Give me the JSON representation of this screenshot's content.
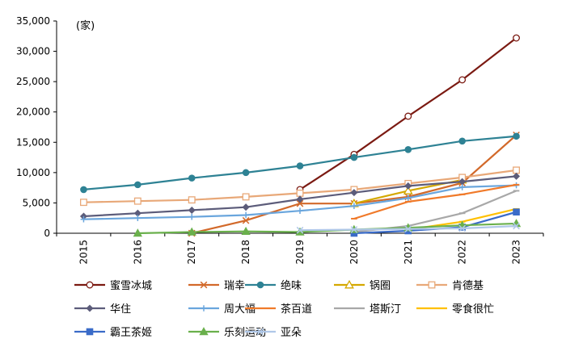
{
  "chart_data": {
    "type": "line",
    "unit_label": "(家)",
    "categories": [
      "2015",
      "2016",
      "2017",
      "2018",
      "2019",
      "2020",
      "2021",
      "2022",
      "2023"
    ],
    "ylim": [
      0,
      35000
    ],
    "yticks": [
      "0",
      "5,000",
      "10,000",
      "15,000",
      "20,000",
      "25,000",
      "30,000",
      "35,000"
    ],
    "ytick_values": [
      0,
      5000,
      10000,
      15000,
      20000,
      25000,
      30000,
      35000
    ],
    "series": [
      {
        "name": "蜜雪冰城",
        "color": "#7b1a12",
        "marker": "circle-open",
        "values": [
          null,
          null,
          null,
          null,
          7200,
          13000,
          19300,
          25300,
          32200
        ]
      },
      {
        "name": "瑞幸",
        "color": "#d2692a",
        "marker": "x",
        "values": [
          null,
          null,
          0,
          2100,
          4900,
          4900,
          6000,
          8300,
          16200
        ]
      },
      {
        "name": "绝味",
        "color": "#2e8294",
        "marker": "circle",
        "values": [
          7200,
          8000,
          9100,
          10000,
          11100,
          12500,
          13800,
          15200,
          16000
        ]
      },
      {
        "name": "锅圈",
        "color": "#d4a800",
        "marker": "triangle-open",
        "values": [
          null,
          null,
          null,
          null,
          null,
          4900,
          7000,
          8800,
          null
        ]
      },
      {
        "name": "肯德基",
        "color": "#e8a878",
        "marker": "square-open",
        "values": [
          5100,
          5300,
          5500,
          6000,
          6600,
          7200,
          8200,
          9200,
          10400
        ]
      },
      {
        "name": "华住",
        "color": "#5c5c7a",
        "marker": "diamond",
        "values": [
          2800,
          3300,
          3800,
          4300,
          5600,
          6700,
          7800,
          8500,
          9400
        ]
      },
      {
        "name": "周大福",
        "color": "#6aa6dd",
        "marker": "plus",
        "values": [
          2300,
          2500,
          2700,
          3000,
          3700,
          4500,
          5800,
          7600,
          7900
        ]
      },
      {
        "name": "茶百道",
        "color": "#f07a2a",
        "marker": "dash",
        "values": [
          null,
          null,
          null,
          null,
          null,
          2400,
          5200,
          6400,
          8000
        ]
      },
      {
        "name": "塔斯汀",
        "color": "#a8a8a8",
        "marker": "dash",
        "values": [
          null,
          null,
          null,
          null,
          null,
          200,
          1200,
          3300,
          7000
        ]
      },
      {
        "name": "零食很忙",
        "color": "#ffc000",
        "marker": "dash",
        "values": [
          null,
          null,
          null,
          null,
          null,
          null,
          600,
          1900,
          4000
        ]
      },
      {
        "name": "霸王茶姬",
        "color": "#3a6bc8",
        "marker": "square",
        "values": [
          null,
          null,
          null,
          null,
          null,
          0,
          400,
          1000,
          3500
        ]
      },
      {
        "name": "乐刻运动",
        "color": "#6ab04c",
        "marker": "triangle",
        "values": [
          null,
          0,
          200,
          300,
          200,
          600,
          900,
          1300,
          1600
        ]
      },
      {
        "name": "亚朵",
        "color": "#b0c8e8",
        "marker": "x",
        "values": [
          null,
          null,
          null,
          null,
          500,
          600,
          700,
          800,
          1200
        ]
      }
    ]
  }
}
